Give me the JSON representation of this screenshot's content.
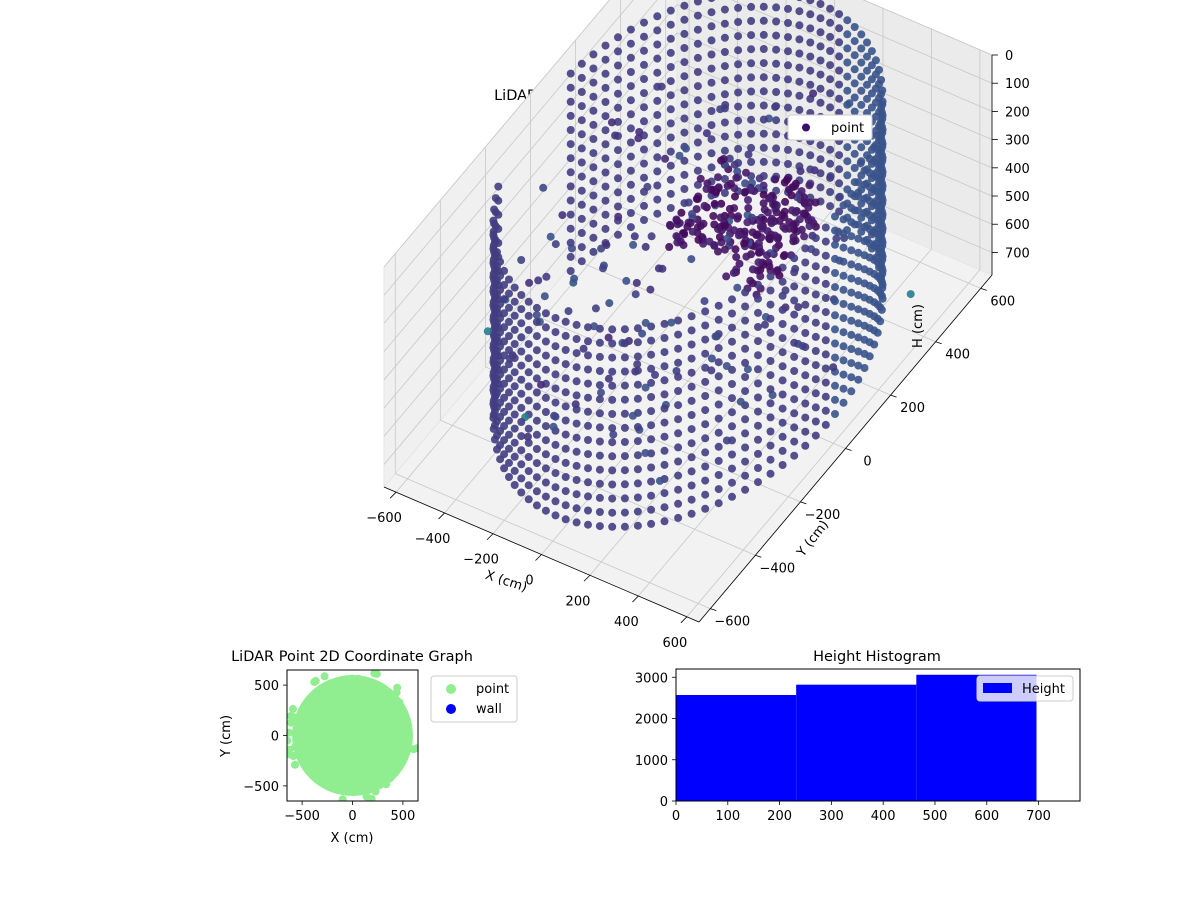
{
  "chart_data": [
    {
      "type": "scatter",
      "projection": "3d",
      "title": "LiDAR Point 3D Coordinate Graph",
      "xlabel": "X (cm)",
      "ylabel": "Y (cm)",
      "zlabel": "H (cm)",
      "xlim": [
        -650,
        650
      ],
      "ylim": [
        -650,
        650
      ],
      "zlim": [
        780,
        0
      ],
      "zaxis_inverted": true,
      "xticks": [
        -600,
        -400,
        -200,
        0,
        200,
        400,
        600
      ],
      "yticks": [
        -600,
        -400,
        -200,
        0,
        200,
        400,
        600
      ],
      "zticks": [
        0,
        100,
        200,
        300,
        400,
        500,
        600,
        700
      ],
      "legend": {
        "entries": [
          "point"
        ],
        "placement": "top-right"
      },
      "colormap": "viridis",
      "grid": true,
      "description_values": {
        "wall_ring_radius": 600,
        "wall_height_range": [
          0,
          700
        ],
        "interior_cluster_center": [
          100,
          150
        ],
        "interior_cluster_height": 300
      }
    },
    {
      "type": "scatter",
      "title": "LiDAR Point 2D Coordinate Graph",
      "xlabel": "X (cm)",
      "ylabel": "Y (cm)",
      "xlim": [
        -650,
        650
      ],
      "ylim": [
        -650,
        650
      ],
      "xticks": [
        -500,
        0,
        500
      ],
      "yticks": [
        -500,
        0,
        500
      ],
      "series": [
        {
          "name": "point",
          "color": "#90ee90"
        },
        {
          "name": "wall",
          "color": "#0000ff"
        }
      ],
      "disk_radius": 600,
      "legend": {
        "placement": "outside-right"
      },
      "grid": false
    },
    {
      "type": "bar",
      "subtype": "histogram",
      "title": "Height Histogram",
      "bins": [
        [
          0,
          232
        ],
        [
          232,
          464
        ],
        [
          464,
          696
        ]
      ],
      "values": [
        2570,
        2820,
        3060
      ],
      "xlim": [
        0,
        780
      ],
      "ylim": [
        0,
        3200
      ],
      "xticks": [
        0,
        100,
        200,
        300,
        400,
        500,
        600,
        700
      ],
      "yticks": [
        0,
        1000,
        2000,
        3000
      ],
      "color": "#0000ff",
      "legend": {
        "entries": [
          "Height"
        ],
        "placement": "top-right"
      },
      "grid": false
    }
  ]
}
